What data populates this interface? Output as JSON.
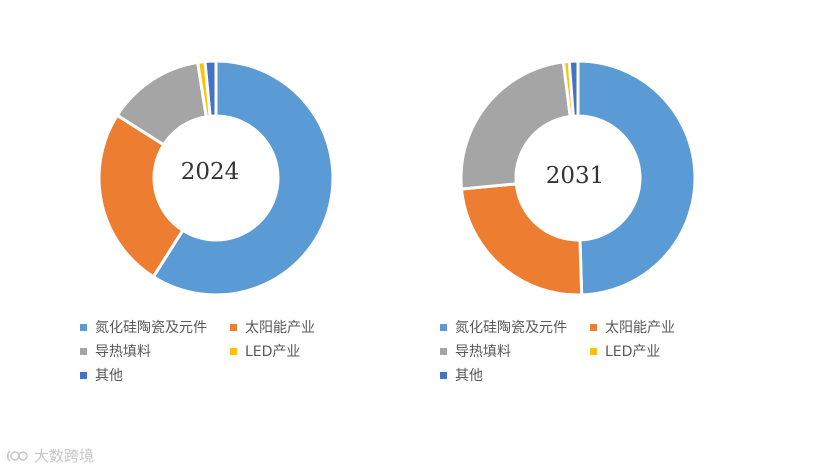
{
  "chart_data": [
    {
      "type": "donut",
      "center_label": "2024",
      "categories": [
        "氮化硅陶瓷及元件",
        "太阳能产业",
        "导热填料",
        "LED产业",
        "其他"
      ],
      "values": [
        59,
        25,
        13.5,
        1,
        1.5
      ],
      "colors": [
        "#5B9BD5",
        "#ED7D31",
        "#A5A5A5",
        "#FFC000",
        "#4472C4"
      ],
      "legend_position": "bottom",
      "legend": [
        "氮化硅陶瓷及元件",
        "太阳能产业",
        "导热填料",
        "LED产业",
        "其他"
      ]
    },
    {
      "type": "donut",
      "center_label": "2031",
      "categories": [
        "氮化硅陶瓷及元件",
        "太阳能产业",
        "导热填料",
        "LED产业",
        "其他"
      ],
      "values": [
        49.5,
        24,
        24.5,
        0.8,
        1.2
      ],
      "colors": [
        "#5B9BD5",
        "#ED7D31",
        "#A5A5A5",
        "#FFC000",
        "#4472C4"
      ],
      "legend_position": "bottom",
      "legend": [
        "氮化硅陶瓷及元件",
        "太阳能产业",
        "导热填料",
        "LED产业",
        "其他"
      ]
    }
  ],
  "watermark": {
    "text": "大数跨境",
    "icon": "brand-logo-icon"
  }
}
